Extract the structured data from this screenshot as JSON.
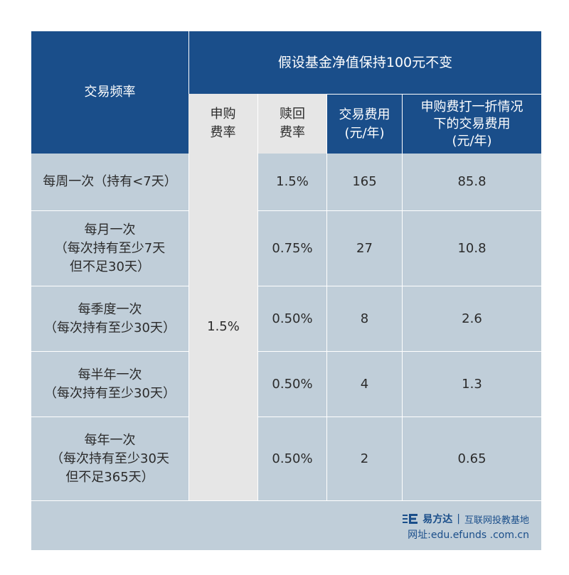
{
  "header": {
    "freq_label": "交易频率",
    "assumption": "假设基金净值保持100元不变",
    "sub_fee_line1": "申购",
    "sub_fee_line2": "费率",
    "red_fee_line1": "赎回",
    "red_fee_line2": "费率",
    "cost_line1": "交易费用",
    "cost_line2": "(元/年)",
    "disc_line1": "申购费打一折情况",
    "disc_line2": "下的交易费用",
    "disc_line3": "(元/年)"
  },
  "subscription_rate": "1.5%",
  "rows": [
    {
      "freq": [
        "每周一次（持有<7天）"
      ],
      "redemption": "1.5%",
      "cost": "165",
      "discounted": "85.8"
    },
    {
      "freq": [
        "每月一次",
        "（每次持有至少7天",
        "但不足30天）"
      ],
      "redemption": "0.75%",
      "cost": "27",
      "discounted": "10.8"
    },
    {
      "freq": [
        "每季度一次",
        "（每次持有至少30天）"
      ],
      "redemption": "0.50%",
      "cost": "8",
      "discounted": "2.6"
    },
    {
      "freq": [
        "每半年一次",
        "（每次持有至少30天）"
      ],
      "redemption": "0.50%",
      "cost": "4",
      "discounted": "1.3"
    },
    {
      "freq": [
        "每年一次",
        "（每次持有至少30天",
        "但不足365天）"
      ],
      "redemption": "0.50%",
      "cost": "2",
      "discounted": "0.65"
    }
  ],
  "footer": {
    "brand": "易方达",
    "separator": "|",
    "tagline": "互联网投教基地",
    "website": "网址:edu.efunds .com.cn"
  },
  "colors": {
    "header_navy": "#1a4e8a",
    "cell_blue": "#c0ced9",
    "cell_gray": "#e6e6e6"
  },
  "icons": {
    "logo": "efunds-logo-icon"
  }
}
